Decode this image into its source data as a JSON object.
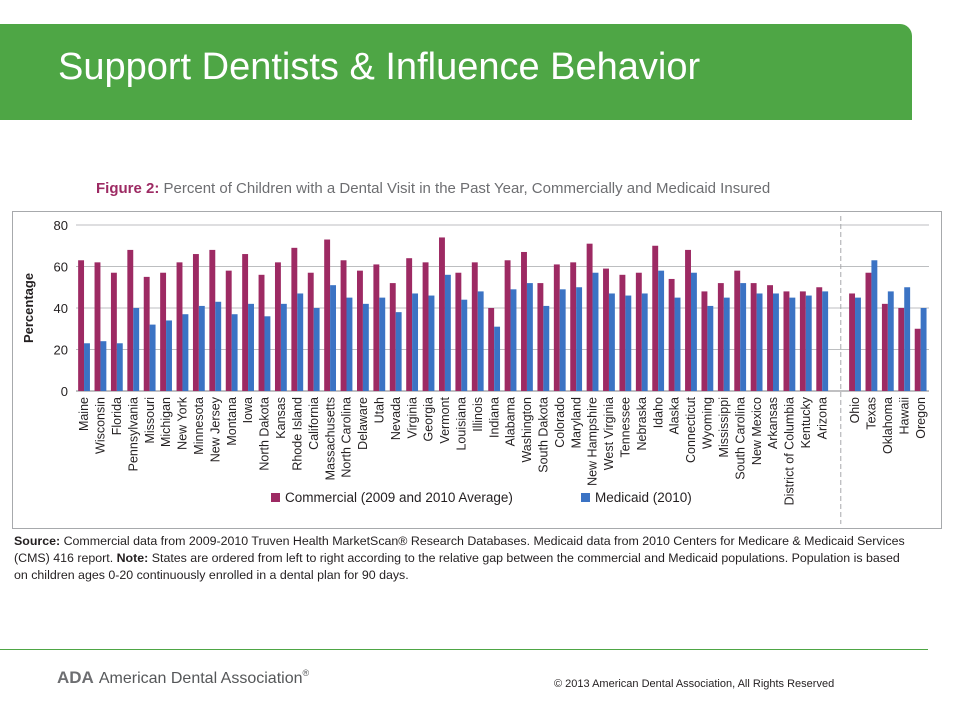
{
  "slide": {
    "title": "Support Dentists & Influence Behavior"
  },
  "figure": {
    "label": "Figure 2:",
    "title": "Percent of Children with a Dental Visit in the Past Year, Commercially and Medicaid Insured"
  },
  "source": {
    "source_label": "Source:",
    "source_text": "Commercial data from 2009-2010 Truven Health MarketScan® Research Databases. Medicaid data from 2010 Centers for Medicare & Medicaid Services (CMS) 416 report.",
    "note_label": "Note:",
    "note_text": "States are ordered from left to right according to the relative gap between the commercial and Medicaid populations. Population is based on children ages 0-20 continuously enrolled in a dental plan for 90 days."
  },
  "footer": {
    "ada_abbr": "ADA",
    "ada_name": "American Dental Association",
    "ada_reg": "®",
    "copyright": "© 2013 American Dental Association, All Rights Reserved"
  },
  "colors": {
    "header_green": "#4ea645",
    "commercial": "#9d2a63",
    "medicaid": "#3b73c4"
  },
  "chart_data": {
    "type": "bar",
    "ylabel": "Percentage",
    "xlabel": "",
    "ylim": [
      0,
      80
    ],
    "yticks": [
      0,
      20,
      40,
      60,
      80
    ],
    "grid": true,
    "legend_position": "bottom",
    "separator_after_index": 45,
    "categories": [
      "Maine",
      "Wisconsin",
      "Florida",
      "Pennsylvania",
      "Missouri",
      "Michigan",
      "New York",
      "Minnesota",
      "New Jersey",
      "Montana",
      "Iowa",
      "North Dakota",
      "Kansas",
      "Rhode Island",
      "California",
      "Massachusetts",
      "North Carolina",
      "Delaware",
      "Utah",
      "Nevada",
      "Virginia",
      "Georgia",
      "Vermont",
      "Louisiana",
      "Illinois",
      "Indiana",
      "Alabama",
      "Washington",
      "South Dakota",
      "Colorado",
      "Maryland",
      "New Hampshire",
      "West Virginia",
      "Tennessee",
      "Nebraska",
      "Idaho",
      "Alaska",
      "Connecticut",
      "Wyoming",
      "Mississippi",
      "South Carolina",
      "New Mexico",
      "Arkansas",
      "District of Columbia",
      "Kentucky",
      "Arizona",
      "Ohio",
      "Texas",
      "Oklahoma",
      "Hawaii",
      "Oregon"
    ],
    "series": [
      {
        "name": "Commercial (2009 and 2010 Average)",
        "color": "#9d2a63",
        "values": [
          63,
          62,
          57,
          68,
          55,
          57,
          62,
          66,
          68,
          58,
          66,
          56,
          62,
          69,
          57,
          73,
          63,
          58,
          61,
          52,
          64,
          62,
          74,
          57,
          62,
          40,
          63,
          67,
          52,
          61,
          62,
          71,
          59,
          56,
          57,
          70,
          54,
          68,
          48,
          52,
          58,
          52,
          51,
          48,
          48,
          50,
          47,
          57,
          42,
          40,
          30
        ]
      },
      {
        "name": "Medicaid (2010)",
        "color": "#3b73c4",
        "values": [
          23,
          24,
          23,
          40,
          32,
          34,
          37,
          41,
          43,
          37,
          42,
          36,
          42,
          47,
          40,
          51,
          45,
          42,
          45,
          38,
          47,
          46,
          56,
          44,
          48,
          31,
          49,
          52,
          41,
          49,
          50,
          57,
          47,
          46,
          47,
          58,
          45,
          57,
          41,
          45,
          52,
          47,
          47,
          45,
          46,
          48,
          45,
          63,
          48,
          50,
          40
        ]
      }
    ]
  }
}
